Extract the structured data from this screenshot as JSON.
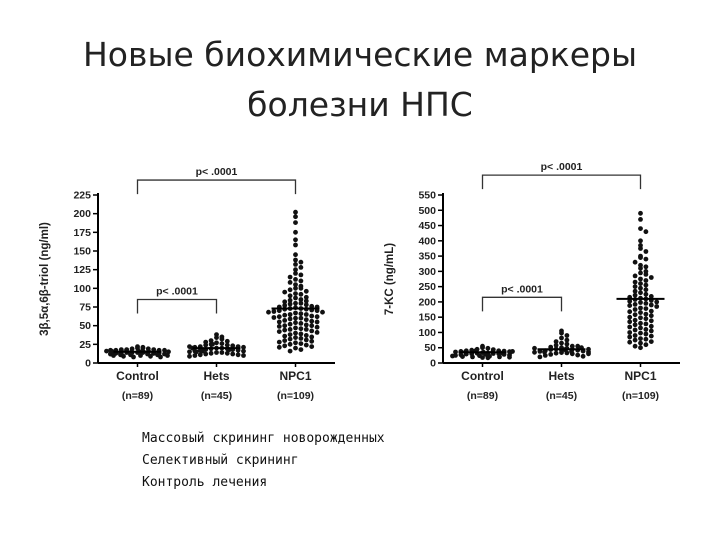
{
  "slide": {
    "title_lines": [
      "Новые биохимические маркеры",
      "болезни НПС"
    ],
    "bullets": [
      "Массовый скрининг новорожденных",
      "Селективный скрининг",
      "Контроль лечения"
    ]
  },
  "chart_data": [
    {
      "type": "scatter",
      "ylabel": "3β,5α,6β-triol (ng/ml)",
      "ylim": [
        0,
        225
      ],
      "yticks": [
        0,
        25,
        50,
        75,
        100,
        125,
        150,
        175,
        200,
        225
      ],
      "categories": [
        "Control",
        "Hets",
        "NPC1"
      ],
      "n_labels": [
        "(n=89)",
        "(n=45)",
        "(n=109)"
      ],
      "means": [
        15,
        20,
        73
      ],
      "series": [
        {
          "category": "Control",
          "values": [
            22,
            21,
            20,
            20,
            19,
            19,
            18,
            18,
            18,
            17,
            17,
            17,
            17,
            16,
            16,
            16,
            16,
            15,
            15,
            15,
            15,
            15,
            14,
            14,
            14,
            14,
            14,
            13,
            13,
            13,
            13,
            12,
            12,
            12,
            12,
            11,
            11,
            11,
            10,
            10,
            10,
            9,
            9,
            8,
            8,
            16,
            15,
            14,
            13,
            17
          ]
        },
        {
          "category": "Hets",
          "values": [
            38,
            35,
            34,
            32,
            30,
            29,
            28,
            27,
            26,
            25,
            24,
            24,
            23,
            22,
            22,
            21,
            21,
            20,
            20,
            19,
            19,
            18,
            18,
            17,
            17,
            16,
            16,
            15,
            15,
            14,
            14,
            13,
            13,
            12,
            12,
            11,
            11,
            10,
            10,
            9,
            20,
            18,
            16,
            22,
            25
          ]
        },
        {
          "category": "NPC1",
          "values": [
            202,
            196,
            188,
            175,
            165,
            158,
            145,
            138,
            135,
            132,
            128,
            125,
            120,
            118,
            115,
            112,
            110,
            108,
            105,
            103,
            100,
            100,
            98,
            96,
            95,
            93,
            92,
            90,
            88,
            87,
            85,
            84,
            83,
            82,
            80,
            80,
            79,
            78,
            77,
            76,
            75,
            75,
            74,
            73,
            73,
            72,
            72,
            71,
            70,
            70,
            69,
            68,
            68,
            67,
            66,
            65,
            65,
            64,
            63,
            62,
            62,
            61,
            60,
            60,
            59,
            58,
            57,
            56,
            55,
            55,
            54,
            53,
            52,
            51,
            50,
            50,
            49,
            48,
            47,
            46,
            45,
            45,
            44,
            43,
            42,
            41,
            40,
            39,
            38,
            37,
            36,
            35,
            34,
            33,
            32,
            31,
            30,
            29,
            28,
            27,
            26,
            25,
            24,
            23,
            22,
            21,
            20,
            18,
            16
          ]
        }
      ],
      "significance": [
        {
          "text": "p< .0001",
          "from": "Control",
          "to": "NPC1",
          "y": 245
        },
        {
          "text": "p< .0001",
          "from": "Control",
          "to": "Hets",
          "y": 85
        }
      ]
    },
    {
      "type": "scatter",
      "ylabel": "7-KC (ng/mL)",
      "ylim": [
        0,
        550
      ],
      "yticks": [
        0,
        50,
        100,
        150,
        200,
        250,
        300,
        350,
        400,
        450,
        500,
        550
      ],
      "categories": [
        "Control",
        "Hets",
        "NPC1"
      ],
      "n_labels": [
        "(n=89)",
        "(n=45)",
        "(n=109)"
      ],
      "means": [
        35,
        45,
        210
      ],
      "series": [
        {
          "category": "Control",
          "values": [
            55,
            50,
            48,
            45,
            44,
            42,
            40,
            40,
            39,
            38,
            37,
            36,
            35,
            35,
            34,
            33,
            32,
            31,
            30,
            30,
            29,
            28,
            27,
            26,
            25,
            24,
            23,
            22,
            21,
            20,
            20,
            19,
            18,
            17,
            35,
            36,
            32,
            40,
            38,
            28
          ]
        },
        {
          "category": "Hets",
          "values": [
            105,
            98,
            90,
            82,
            75,
            70,
            65,
            62,
            58,
            55,
            52,
            50,
            48,
            46,
            45,
            44,
            42,
            40,
            39,
            38,
            36,
            35,
            34,
            33,
            32,
            30,
            28,
            26,
            25,
            22,
            20,
            45,
            42,
            48,
            38,
            36,
            50,
            55,
            30,
            44
          ]
        },
        {
          "category": "NPC1",
          "values": [
            490,
            470,
            440,
            430,
            400,
            385,
            375,
            365,
            350,
            345,
            340,
            330,
            320,
            315,
            310,
            300,
            295,
            290,
            285,
            280,
            275,
            270,
            265,
            260,
            255,
            250,
            245,
            240,
            235,
            230,
            225,
            222,
            218,
            215,
            212,
            210,
            208,
            205,
            202,
            200,
            198,
            195,
            192,
            190,
            188,
            185,
            180,
            178,
            175,
            170,
            168,
            165,
            160,
            158,
            155,
            150,
            148,
            145,
            140,
            138,
            135,
            130,
            128,
            125,
            120,
            118,
            115,
            110,
            108,
            105,
            100,
            98,
            95,
            90,
            88,
            85,
            80,
            78,
            75,
            70,
            68,
            65,
            60,
            55,
            50
          ]
        }
      ],
      "significance": [
        {
          "text": "p< .0001",
          "from": "Control",
          "to": "NPC1",
          "y": 615
        },
        {
          "text": "p< .0001",
          "from": "Control",
          "to": "Hets",
          "y": 215
        }
      ]
    }
  ]
}
